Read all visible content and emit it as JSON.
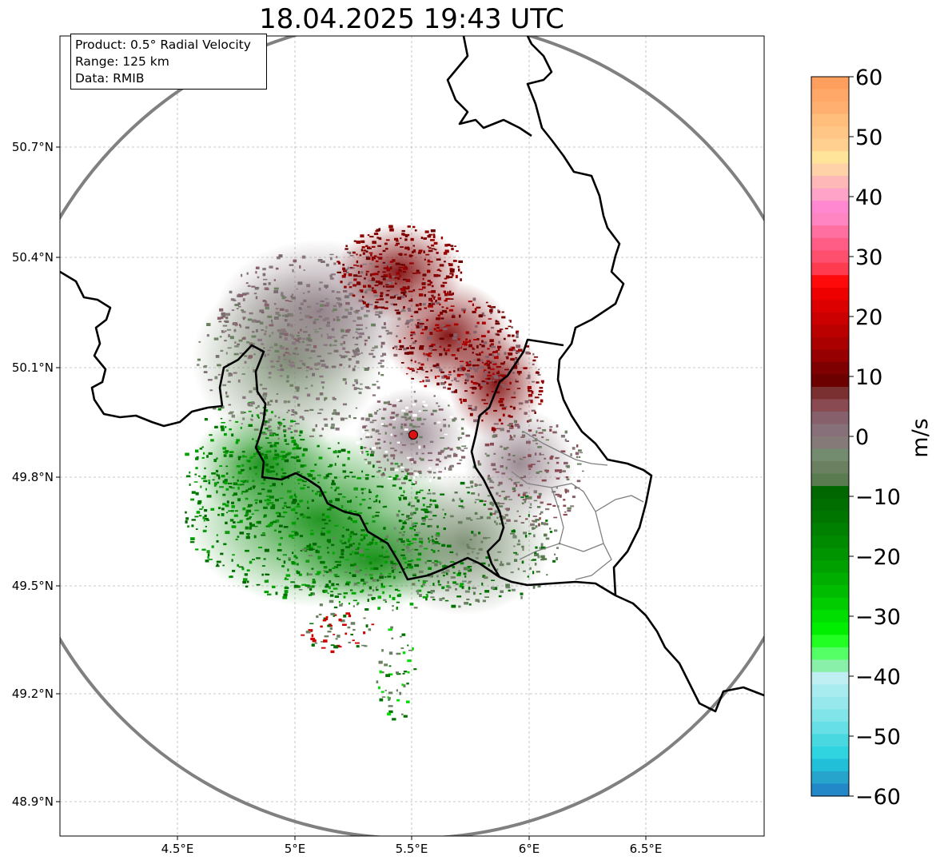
{
  "title": "18.04.2025 19:43 UTC",
  "info_box": {
    "lines": [
      "Product: 0.5° Radial Velocity",
      "Range: 125 km",
      "Data: RMIB"
    ]
  },
  "axes": {
    "lon_ticks": [
      "4.5°E",
      "5°E",
      "5.5°E",
      "6°E",
      "6.5°E"
    ],
    "lat_ticks": [
      "50.7°N",
      "50.4°N",
      "50.1°N",
      "49.8°N",
      "49.5°N",
      "49.2°N",
      "48.9°N"
    ]
  },
  "colorbar": {
    "label": "m/s",
    "tick_labels": [
      "60",
      "50",
      "40",
      "30",
      "20",
      "10",
      "0",
      "−10",
      "−20",
      "−30",
      "−40",
      "−50",
      "−60"
    ],
    "min": -60,
    "max": 60
  },
  "colors": {
    "range_ring": "#808080",
    "border_line": "#000000",
    "radar_site": "#dd1111",
    "receding_dark": "#6e0000",
    "approaching_green": "#008000"
  }
}
